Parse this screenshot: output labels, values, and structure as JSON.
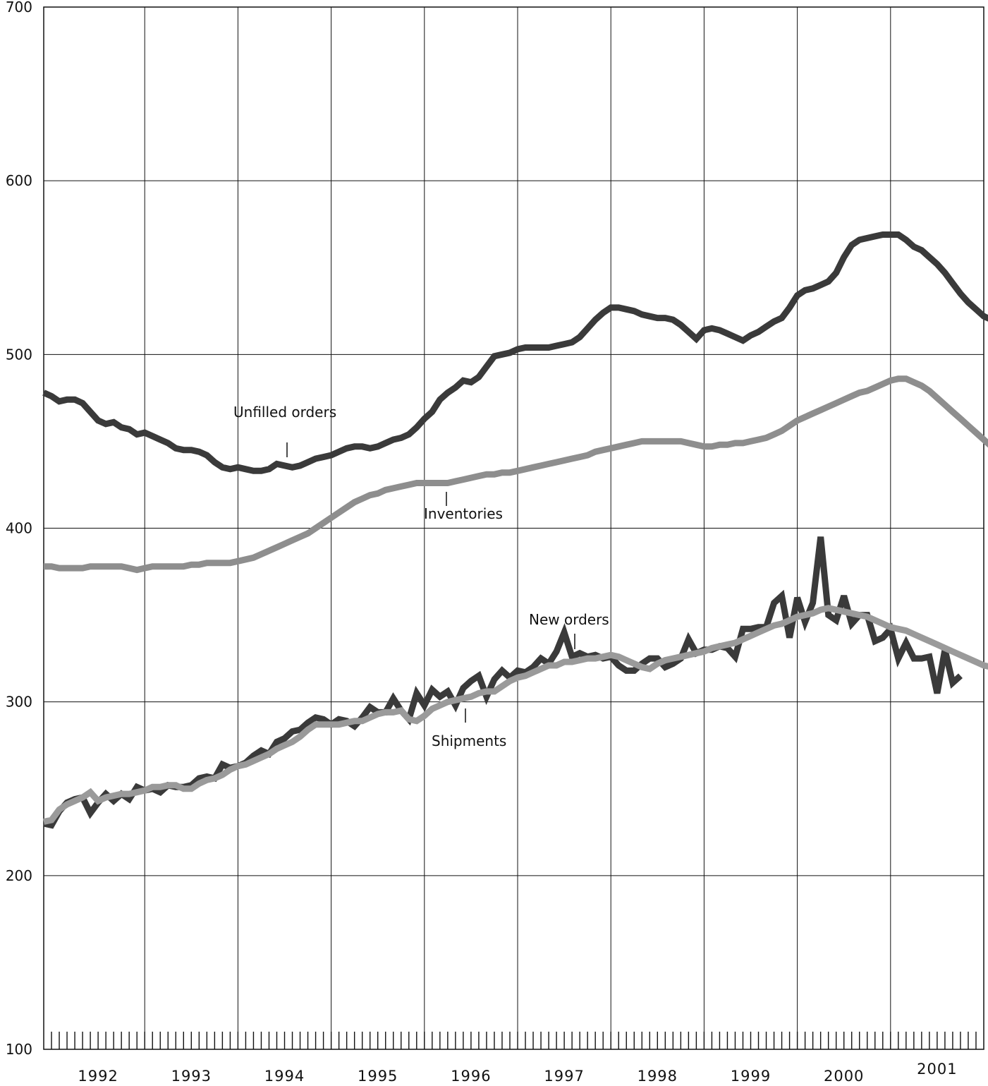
{
  "chart_data": {
    "type": "line",
    "title": "",
    "xlabel": "",
    "ylabel": "",
    "ylim": [
      100,
      700
    ],
    "yticks": [
      100,
      200,
      300,
      400,
      500,
      600,
      700
    ],
    "xlim": [
      "1992-01",
      "2002-02"
    ],
    "year_labels": [
      "1992",
      "1993",
      "1994",
      "1995",
      "1996",
      "1997",
      "1998",
      "1999",
      "2000",
      "2001"
    ],
    "grid": true,
    "legend": "none (series labeled directly on chart)",
    "x_units": "months",
    "annotations": [
      "Unfilled orders",
      "Inventories",
      "New orders",
      "Shipments"
    ],
    "series": [
      {
        "label": "unfilled-orders",
        "color": "#3a3a3a",
        "x_start": "1992-01",
        "values": [
          478,
          476,
          473,
          474,
          474,
          472,
          467,
          462,
          460,
          461,
          458,
          457,
          454,
          455,
          453,
          451,
          449,
          446,
          445,
          445,
          444,
          442,
          438,
          435,
          434,
          435,
          434,
          433,
          433,
          434,
          437,
          436,
          435,
          436,
          438,
          440,
          441,
          442,
          444,
          446,
          447,
          447,
          446,
          447,
          449,
          451,
          452,
          454,
          458,
          463,
          467,
          474,
          478,
          481,
          485,
          484,
          487,
          493,
          499,
          500,
          501,
          503,
          504,
          504,
          504,
          504,
          505,
          506,
          507,
          510,
          515,
          520,
          524,
          527,
          527,
          526,
          525,
          523,
          522,
          521,
          521,
          520,
          517,
          513,
          509,
          514,
          515,
          514,
          512,
          510,
          508,
          511,
          513,
          516,
          519,
          521,
          527,
          534,
          537,
          538,
          540,
          542,
          547,
          556,
          563,
          566,
          567,
          568,
          569,
          569,
          569,
          566,
          562,
          560,
          556,
          552,
          547,
          541,
          535,
          530,
          526,
          522,
          520
        ]
      },
      {
        "label": "inventories",
        "color": "#8e8e8e",
        "x_start": "1992-01",
        "values": [
          378,
          378,
          377,
          377,
          377,
          377,
          378,
          378,
          378,
          378,
          378,
          377,
          376,
          377,
          378,
          378,
          378,
          378,
          378,
          379,
          379,
          380,
          380,
          380,
          380,
          381,
          382,
          383,
          385,
          387,
          389,
          391,
          393,
          395,
          397,
          400,
          403,
          406,
          409,
          412,
          415,
          417,
          419,
          420,
          422,
          423,
          424,
          425,
          426,
          426,
          426,
          426,
          426,
          427,
          428,
          429,
          430,
          431,
          431,
          432,
          432,
          433,
          434,
          435,
          436,
          437,
          438,
          439,
          440,
          441,
          442,
          444,
          445,
          446,
          447,
          448,
          449,
          450,
          450,
          450,
          450,
          450,
          450,
          449,
          448,
          447,
          447,
          448,
          448,
          449,
          449,
          450,
          451,
          452,
          454,
          456,
          459,
          462,
          464,
          466,
          468,
          470,
          472,
          474,
          476,
          478,
          479,
          481,
          483,
          485,
          486,
          486,
          484,
          482,
          479,
          475,
          471,
          467,
          463,
          459,
          455,
          451,
          447
        ]
      },
      {
        "label": "new-orders",
        "color": "#3a3a3a",
        "x_start": "1992-01",
        "values": [
          230,
          229,
          237,
          242,
          244,
          245,
          236,
          242,
          247,
          243,
          247,
          244,
          251,
          249,
          250,
          248,
          252,
          251,
          251,
          252,
          256,
          257,
          256,
          264,
          262,
          263,
          265,
          269,
          272,
          270,
          277,
          279,
          283,
          284,
          288,
          291,
          290,
          287,
          290,
          289,
          286,
          291,
          297,
          294,
          294,
          302,
          295,
          290,
          305,
          298,
          307,
          303,
          306,
          298,
          308,
          312,
          315,
          303,
          313,
          318,
          314,
          318,
          317,
          320,
          325,
          322,
          329,
          340,
          326,
          328,
          326,
          327,
          325,
          326,
          321,
          318,
          318,
          322,
          325,
          325,
          320,
          322,
          325,
          336,
          328,
          330,
          330,
          332,
          331,
          326,
          342,
          342,
          343,
          343,
          357,
          361,
          337,
          360,
          346,
          357,
          395,
          350,
          347,
          361,
          345,
          350,
          350,
          335,
          337,
          342,
          325,
          334,
          325,
          325,
          326,
          305,
          330,
          311,
          315
        ]
      },
      {
        "label": "shipments",
        "color": "#9a9a9a",
        "x_start": "1992-01",
        "values": [
          231,
          232,
          238,
          241,
          243,
          245,
          248,
          243,
          245,
          246,
          247,
          247,
          248,
          249,
          251,
          251,
          252,
          252,
          250,
          250,
          253,
          255,
          256,
          258,
          261,
          263,
          264,
          266,
          268,
          270,
          273,
          275,
          277,
          280,
          284,
          287,
          287,
          287,
          287,
          288,
          289,
          289,
          291,
          293,
          294,
          294,
          295,
          290,
          289,
          292,
          296,
          298,
          300,
          301,
          302,
          303,
          305,
          306,
          306,
          309,
          312,
          314,
          315,
          317,
          319,
          321,
          321,
          323,
          323,
          324,
          325,
          325,
          326,
          327,
          326,
          324,
          322,
          320,
          319,
          322,
          324,
          325,
          326,
          327,
          328,
          329,
          331,
          332,
          333,
          334,
          336,
          338,
          340,
          342,
          344,
          345,
          347,
          349,
          350,
          351,
          353,
          354,
          353,
          352,
          351,
          350,
          349,
          347,
          345,
          343,
          342,
          341,
          339,
          337,
          335,
          333,
          331,
          329,
          327,
          325,
          323,
          321,
          320
        ]
      }
    ]
  },
  "labels": {
    "unfilled": "Unfilled orders",
    "inventories": "Inventories",
    "new_orders": "New orders",
    "shipments": "Shipments"
  }
}
